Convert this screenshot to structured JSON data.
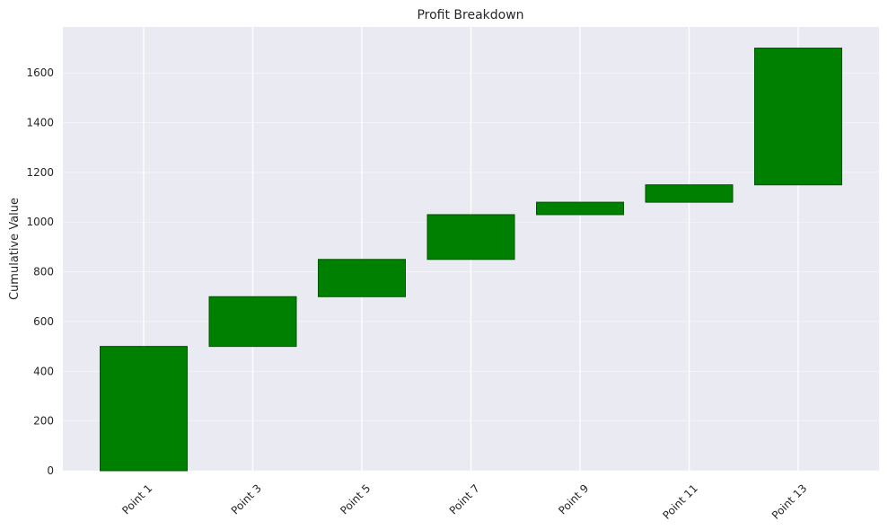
{
  "chart_data": {
    "type": "bar",
    "subtype": "waterfall",
    "title": "Profit Breakdown",
    "xlabel": "",
    "ylabel": "Cumulative Value",
    "categories": [
      "Point 1",
      "Point 3",
      "Point 5",
      "Point 7",
      "Point 9",
      "Point 11",
      "Point 13"
    ],
    "bars": [
      {
        "category": "Point 1",
        "start": 0,
        "end": 500
      },
      {
        "category": "Point 3",
        "start": 500,
        "end": 700
      },
      {
        "category": "Point 5",
        "start": 700,
        "end": 850
      },
      {
        "category": "Point 7",
        "start": 850,
        "end": 1030
      },
      {
        "category": "Point 9",
        "start": 1030,
        "end": 1080
      },
      {
        "category": "Point 11",
        "start": 1080,
        "end": 1150
      },
      {
        "category": "Point 13",
        "start": 1150,
        "end": 1700
      }
    ],
    "ylim": [
      0,
      1785
    ],
    "yticks": [
      0,
      200,
      400,
      600,
      800,
      1000,
      1200,
      1400,
      1600
    ],
    "grid": true,
    "legend": "none",
    "colors": {
      "bar_fill": "#008000",
      "bar_edge": "#005500",
      "plot_background": "#eaeaf2",
      "grid": "#ffffff"
    }
  }
}
